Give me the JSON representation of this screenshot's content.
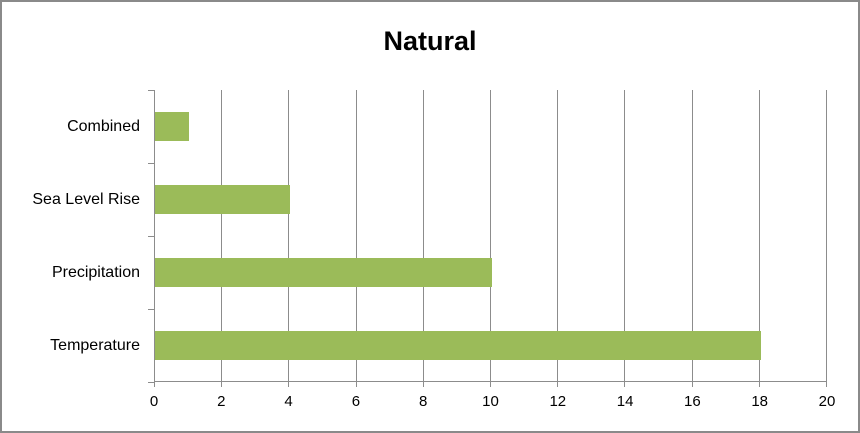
{
  "chart_data": {
    "type": "bar",
    "orientation": "horizontal",
    "title": "Natural",
    "categories": [
      "Combined",
      "Sea Level Rise",
      "Precipitation",
      "Temperature"
    ],
    "values": [
      1,
      4,
      10,
      18
    ],
    "xlabel": "",
    "ylabel": "",
    "xlim": [
      0,
      20
    ],
    "x_ticks": [
      0,
      2,
      4,
      6,
      8,
      10,
      12,
      14,
      16,
      18,
      20
    ],
    "grid": true,
    "legend": false,
    "gap_ratio": "bars centered in equal bands, ~40% band fill",
    "colors": {
      "bar": "#9BBB59",
      "grid": "#8C8C8C",
      "axis": "#8C8C8C",
      "text": "#000000",
      "border": "#8A8A8A",
      "background": "#FFFFFF"
    }
  }
}
